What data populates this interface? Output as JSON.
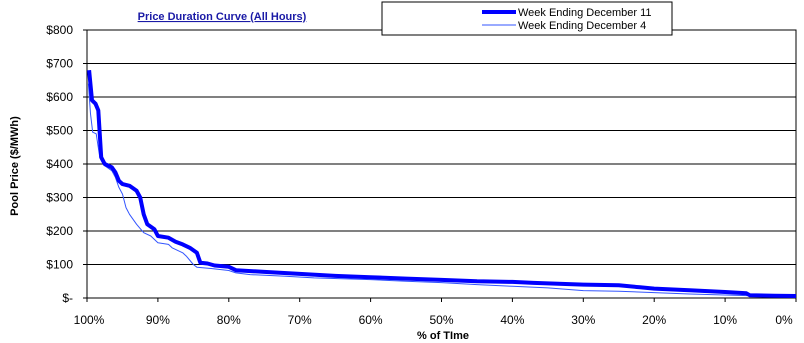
{
  "chart_data": {
    "type": "line",
    "title": "Price Duration Curve (All Hours)",
    "xlabel": "% of TIme",
    "ylabel": "Pool Price ($/MWh)",
    "xlim": [
      100,
      0
    ],
    "ylim": [
      0,
      800
    ],
    "x_ticks": [
      100,
      90,
      80,
      70,
      60,
      50,
      40,
      30,
      20,
      10,
      0
    ],
    "x_tick_labels": [
      "100%",
      "90%",
      "80%",
      "70%",
      "60%",
      "50%",
      "40%",
      "30%",
      "20%",
      "10%",
      "0%"
    ],
    "y_ticks": [
      0,
      100,
      200,
      300,
      400,
      500,
      600,
      700,
      800
    ],
    "y_tick_labels": [
      "$-",
      "$100",
      "$200",
      "$300",
      "$400",
      "$500",
      "$600",
      "$700",
      "$800"
    ],
    "grid": "horizontal",
    "legend_position": "top-right",
    "series": [
      {
        "name": "Week Ending December 11",
        "color": "#0000ff",
        "style": "thick",
        "points": [
          [
            99.7,
            680
          ],
          [
            99.3,
            590
          ],
          [
            98.8,
            580
          ],
          [
            98.4,
            560
          ],
          [
            98.0,
            420
          ],
          [
            97.5,
            400
          ],
          [
            96.5,
            390
          ],
          [
            96.0,
            375
          ],
          [
            95.5,
            350
          ],
          [
            95.0,
            340
          ],
          [
            94.0,
            335
          ],
          [
            93.0,
            320
          ],
          [
            92.5,
            300
          ],
          [
            92.0,
            250
          ],
          [
            91.5,
            220
          ],
          [
            90.5,
            205
          ],
          [
            90.0,
            185
          ],
          [
            88.5,
            180
          ],
          [
            87.5,
            168
          ],
          [
            86.5,
            160
          ],
          [
            85.5,
            150
          ],
          [
            84.5,
            135
          ],
          [
            84.0,
            105
          ],
          [
            83.0,
            103
          ],
          [
            82.0,
            97
          ],
          [
            80.0,
            93
          ],
          [
            79.0,
            83
          ],
          [
            75.0,
            78
          ],
          [
            70.0,
            72
          ],
          [
            65.0,
            66
          ],
          [
            60.0,
            62
          ],
          [
            55.0,
            58
          ],
          [
            50.0,
            54
          ],
          [
            45.0,
            50
          ],
          [
            40.0,
            48
          ],
          [
            37.0,
            45
          ],
          [
            33.0,
            42
          ],
          [
            30.0,
            40
          ],
          [
            25.0,
            38
          ],
          [
            22.0,
            32
          ],
          [
            20.0,
            28
          ],
          [
            15.0,
            23
          ],
          [
            10.0,
            18
          ],
          [
            7.0,
            14
          ],
          [
            6.5,
            8
          ],
          [
            3.0,
            7
          ],
          [
            0.0,
            6
          ]
        ]
      },
      {
        "name": "Week Ending December 4",
        "color": "#3355ff",
        "style": "thin",
        "points": [
          [
            99.8,
            640
          ],
          [
            99.5,
            550
          ],
          [
            99.2,
            495
          ],
          [
            98.7,
            490
          ],
          [
            98.2,
            420
          ],
          [
            97.5,
            395
          ],
          [
            96.5,
            380
          ],
          [
            96.0,
            360
          ],
          [
            95.5,
            330
          ],
          [
            95.0,
            310
          ],
          [
            94.5,
            270
          ],
          [
            94.0,
            250
          ],
          [
            93.0,
            220
          ],
          [
            92.0,
            195
          ],
          [
            91.0,
            185
          ],
          [
            90.0,
            165
          ],
          [
            88.5,
            160
          ],
          [
            88.0,
            150
          ],
          [
            86.5,
            135
          ],
          [
            86.0,
            125
          ],
          [
            85.0,
            100
          ],
          [
            84.5,
            92
          ],
          [
            82.5,
            88
          ],
          [
            80.0,
            82
          ],
          [
            79.0,
            75
          ],
          [
            77.0,
            70
          ],
          [
            72.0,
            65
          ],
          [
            68.0,
            60
          ],
          [
            60.0,
            55
          ],
          [
            55.0,
            50
          ],
          [
            50.0,
            46
          ],
          [
            45.0,
            40
          ],
          [
            40.0,
            35
          ],
          [
            35.0,
            30
          ],
          [
            30.0,
            22
          ],
          [
            25.0,
            20
          ],
          [
            20.0,
            16
          ],
          [
            15.0,
            12
          ],
          [
            10.0,
            9
          ],
          [
            5.0,
            6
          ],
          [
            0.0,
            5
          ]
        ]
      }
    ]
  }
}
